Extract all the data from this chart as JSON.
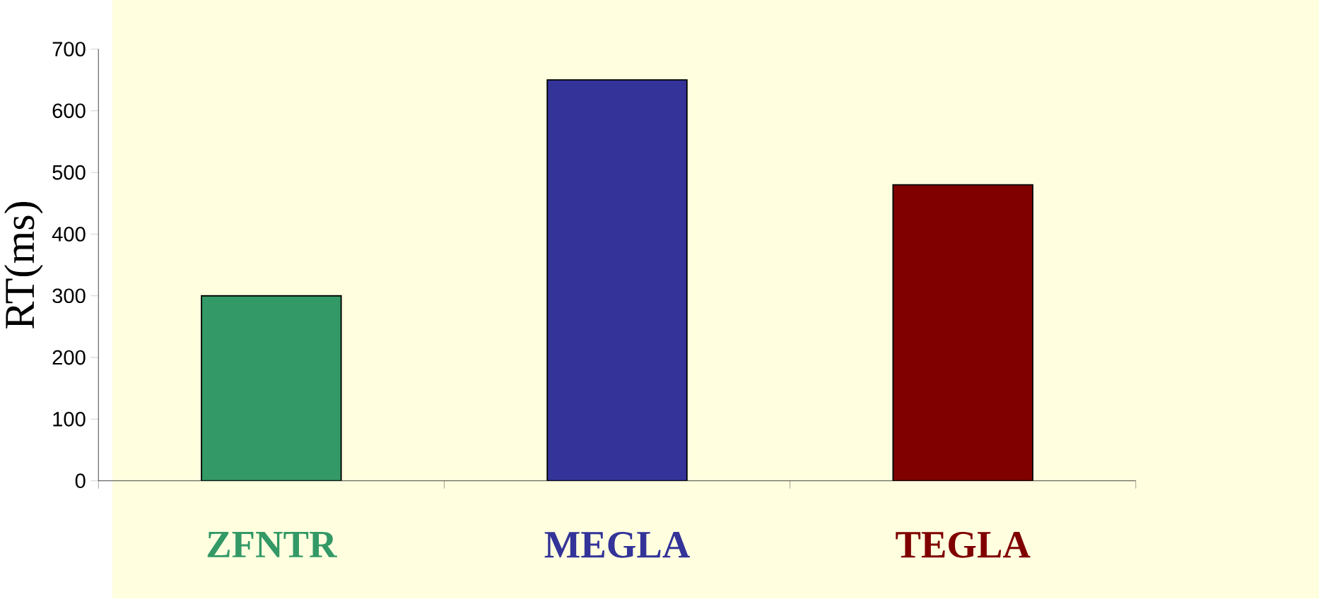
{
  "chart_data": {
    "type": "bar",
    "ylabel": "RT(ms)",
    "categories": [
      "ZFNTR",
      "MEGLA",
      "TEGLA"
    ],
    "values": [
      300,
      650,
      480
    ],
    "colors": [
      "#339966",
      "#333399",
      "#800000"
    ],
    "ylim": [
      0,
      700
    ],
    "yticks": [
      0,
      100,
      200,
      300,
      400,
      500,
      600,
      700
    ]
  }
}
